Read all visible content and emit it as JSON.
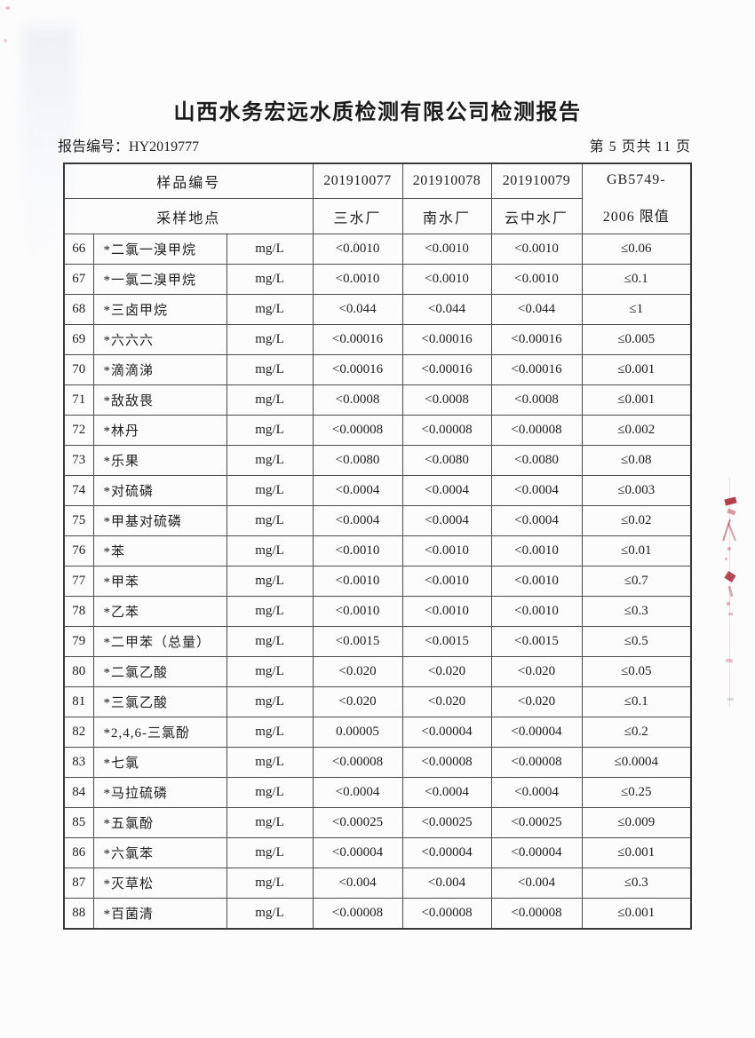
{
  "page": {
    "title": "山西水务宏远水质检测有限公司检测报告",
    "report_label": "报告编号：",
    "report_no": "HY2019777",
    "page_info": "第 5 页共 11 页"
  },
  "table": {
    "header": {
      "sample_id_label": "样品编号",
      "location_label": "采样地点",
      "sample_ids": [
        "201910077",
        "201910078",
        "201910079"
      ],
      "locations": [
        "三水厂",
        "南水厂",
        "云中水厂"
      ],
      "limit_line1": "GB5749-",
      "limit_line2": "2006 限值"
    },
    "rows": [
      {
        "no": "66",
        "name": "*二氯一溴甲烷",
        "unit": "mg/L",
        "v1": "<0.0010",
        "v2": "<0.0010",
        "v3": "<0.0010",
        "limit": "≤0.06"
      },
      {
        "no": "67",
        "name": "*一氯二溴甲烷",
        "unit": "mg/L",
        "v1": "<0.0010",
        "v2": "<0.0010",
        "v3": "<0.0010",
        "limit": "≤0.1"
      },
      {
        "no": "68",
        "name": "*三卤甲烷",
        "unit": "mg/L",
        "v1": "<0.044",
        "v2": "<0.044",
        "v3": "<0.044",
        "limit": "≤1"
      },
      {
        "no": "69",
        "name": "*六六六",
        "unit": "mg/L",
        "v1": "<0.00016",
        "v2": "<0.00016",
        "v3": "<0.00016",
        "limit": "≤0.005"
      },
      {
        "no": "70",
        "name": "*滴滴涕",
        "unit": "mg/L",
        "v1": "<0.00016",
        "v2": "<0.00016",
        "v3": "<0.00016",
        "limit": "≤0.001"
      },
      {
        "no": "71",
        "name": "*敌敌畏",
        "unit": "mg/L",
        "v1": "<0.0008",
        "v2": "<0.0008",
        "v3": "<0.0008",
        "limit": "≤0.001"
      },
      {
        "no": "72",
        "name": "*林丹",
        "unit": "mg/L",
        "v1": "<0.00008",
        "v2": "<0.00008",
        "v3": "<0.00008",
        "limit": "≤0.002"
      },
      {
        "no": "73",
        "name": "*乐果",
        "unit": "mg/L",
        "v1": "<0.0080",
        "v2": "<0.0080",
        "v3": "<0.0080",
        "limit": "≤0.08"
      },
      {
        "no": "74",
        "name": "*对硫磷",
        "unit": "mg/L",
        "v1": "<0.0004",
        "v2": "<0.0004",
        "v3": "<0.0004",
        "limit": "≤0.003"
      },
      {
        "no": "75",
        "name": "*甲基对硫磷",
        "unit": "mg/L",
        "v1": "<0.0004",
        "v2": "<0.0004",
        "v3": "<0.0004",
        "limit": "≤0.02"
      },
      {
        "no": "76",
        "name": "*苯",
        "unit": "mg/L",
        "v1": "<0.0010",
        "v2": "<0.0010",
        "v3": "<0.0010",
        "limit": "≤0.01"
      },
      {
        "no": "77",
        "name": "*甲苯",
        "unit": "mg/L",
        "v1": "<0.0010",
        "v2": "<0.0010",
        "v3": "<0.0010",
        "limit": "≤0.7"
      },
      {
        "no": "78",
        "name": "*乙苯",
        "unit": "mg/L",
        "v1": "<0.0010",
        "v2": "<0.0010",
        "v3": "<0.0010",
        "limit": "≤0.3"
      },
      {
        "no": "79",
        "name": "*二甲苯（总量）",
        "unit": "mg/L",
        "v1": "<0.0015",
        "v2": "<0.0015",
        "v3": "<0.0015",
        "limit": "≤0.5"
      },
      {
        "no": "80",
        "name": "*二氯乙酸",
        "unit": "mg/L",
        "v1": "<0.020",
        "v2": "<0.020",
        "v3": "<0.020",
        "limit": "≤0.05"
      },
      {
        "no": "81",
        "name": "*三氯乙酸",
        "unit": "mg/L",
        "v1": "<0.020",
        "v2": "<0.020",
        "v3": "<0.020",
        "limit": "≤0.1"
      },
      {
        "no": "82",
        "name": "*2,4,6-三氯酚",
        "unit": "mg/L",
        "v1": "0.00005",
        "v2": "<0.00004",
        "v3": "<0.00004",
        "limit": "≤0.2"
      },
      {
        "no": "83",
        "name": "*七氯",
        "unit": "mg/L",
        "v1": "<0.00008",
        "v2": "<0.00008",
        "v3": "<0.00008",
        "limit": "≤0.0004"
      },
      {
        "no": "84",
        "name": "*马拉硫磷",
        "unit": "mg/L",
        "v1": "<0.0004",
        "v2": "<0.0004",
        "v3": "<0.0004",
        "limit": "≤0.25"
      },
      {
        "no": "85",
        "name": "*五氯酚",
        "unit": "mg/L",
        "v1": "<0.00025",
        "v2": "<0.00025",
        "v3": "<0.00025",
        "limit": "≤0.009"
      },
      {
        "no": "86",
        "name": "*六氯苯",
        "unit": "mg/L",
        "v1": "<0.00004",
        "v2": "<0.00004",
        "v3": "<0.00004",
        "limit": "≤0.001"
      },
      {
        "no": "87",
        "name": "*灭草松",
        "unit": "mg/L",
        "v1": "<0.004",
        "v2": "<0.004",
        "v3": "<0.004",
        "limit": "≤0.3"
      },
      {
        "no": "88",
        "name": "*百菌清",
        "unit": "mg/L",
        "v1": "<0.00008",
        "v2": "<0.00008",
        "v3": "<0.00008",
        "limit": "≤0.001"
      }
    ]
  },
  "artifacts": {
    "stamp_color": "#a51e2c",
    "stamp_note": "red-seal-fragments-right-edge"
  }
}
